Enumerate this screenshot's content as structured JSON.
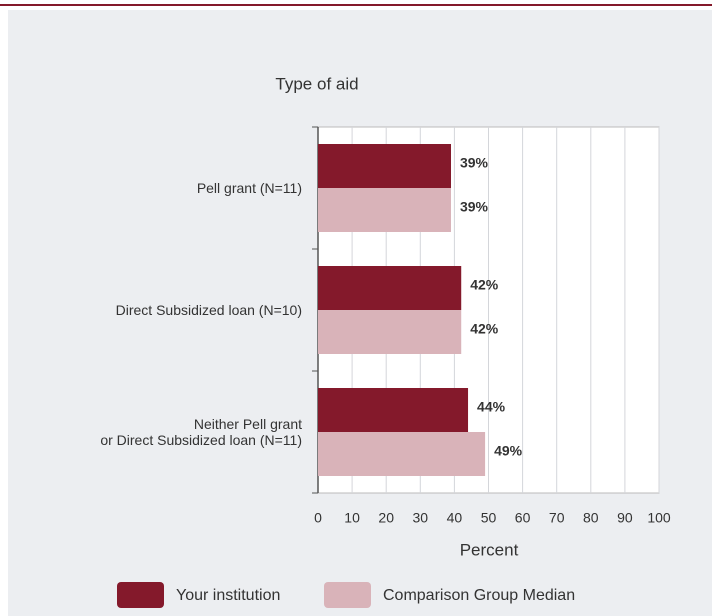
{
  "chart_data": {
    "type": "hbar",
    "y_axis_title": "Type of aid",
    "x_axis_title": "Percent",
    "categories": [
      "Pell grant  (N=11)",
      "Direct Subsidized loan (N=10)",
      "Neither Pell grant\nor Direct Subsidized loan (N=11)"
    ],
    "series": [
      {
        "name": "Your institution",
        "color": "#84192b",
        "values": [
          39,
          42,
          44
        ],
        "value_labels": [
          "39%",
          "42%",
          "44%"
        ]
      },
      {
        "name": "Comparison Group Median",
        "color": "#d9b3b9",
        "values": [
          39,
          42,
          49
        ],
        "value_labels": [
          "39%",
          "42%",
          "49%"
        ]
      }
    ],
    "xlim": [
      0,
      100
    ],
    "xticks": [
      0,
      10,
      20,
      30,
      40,
      50,
      60,
      70,
      80,
      90,
      100
    ],
    "grid": true
  }
}
